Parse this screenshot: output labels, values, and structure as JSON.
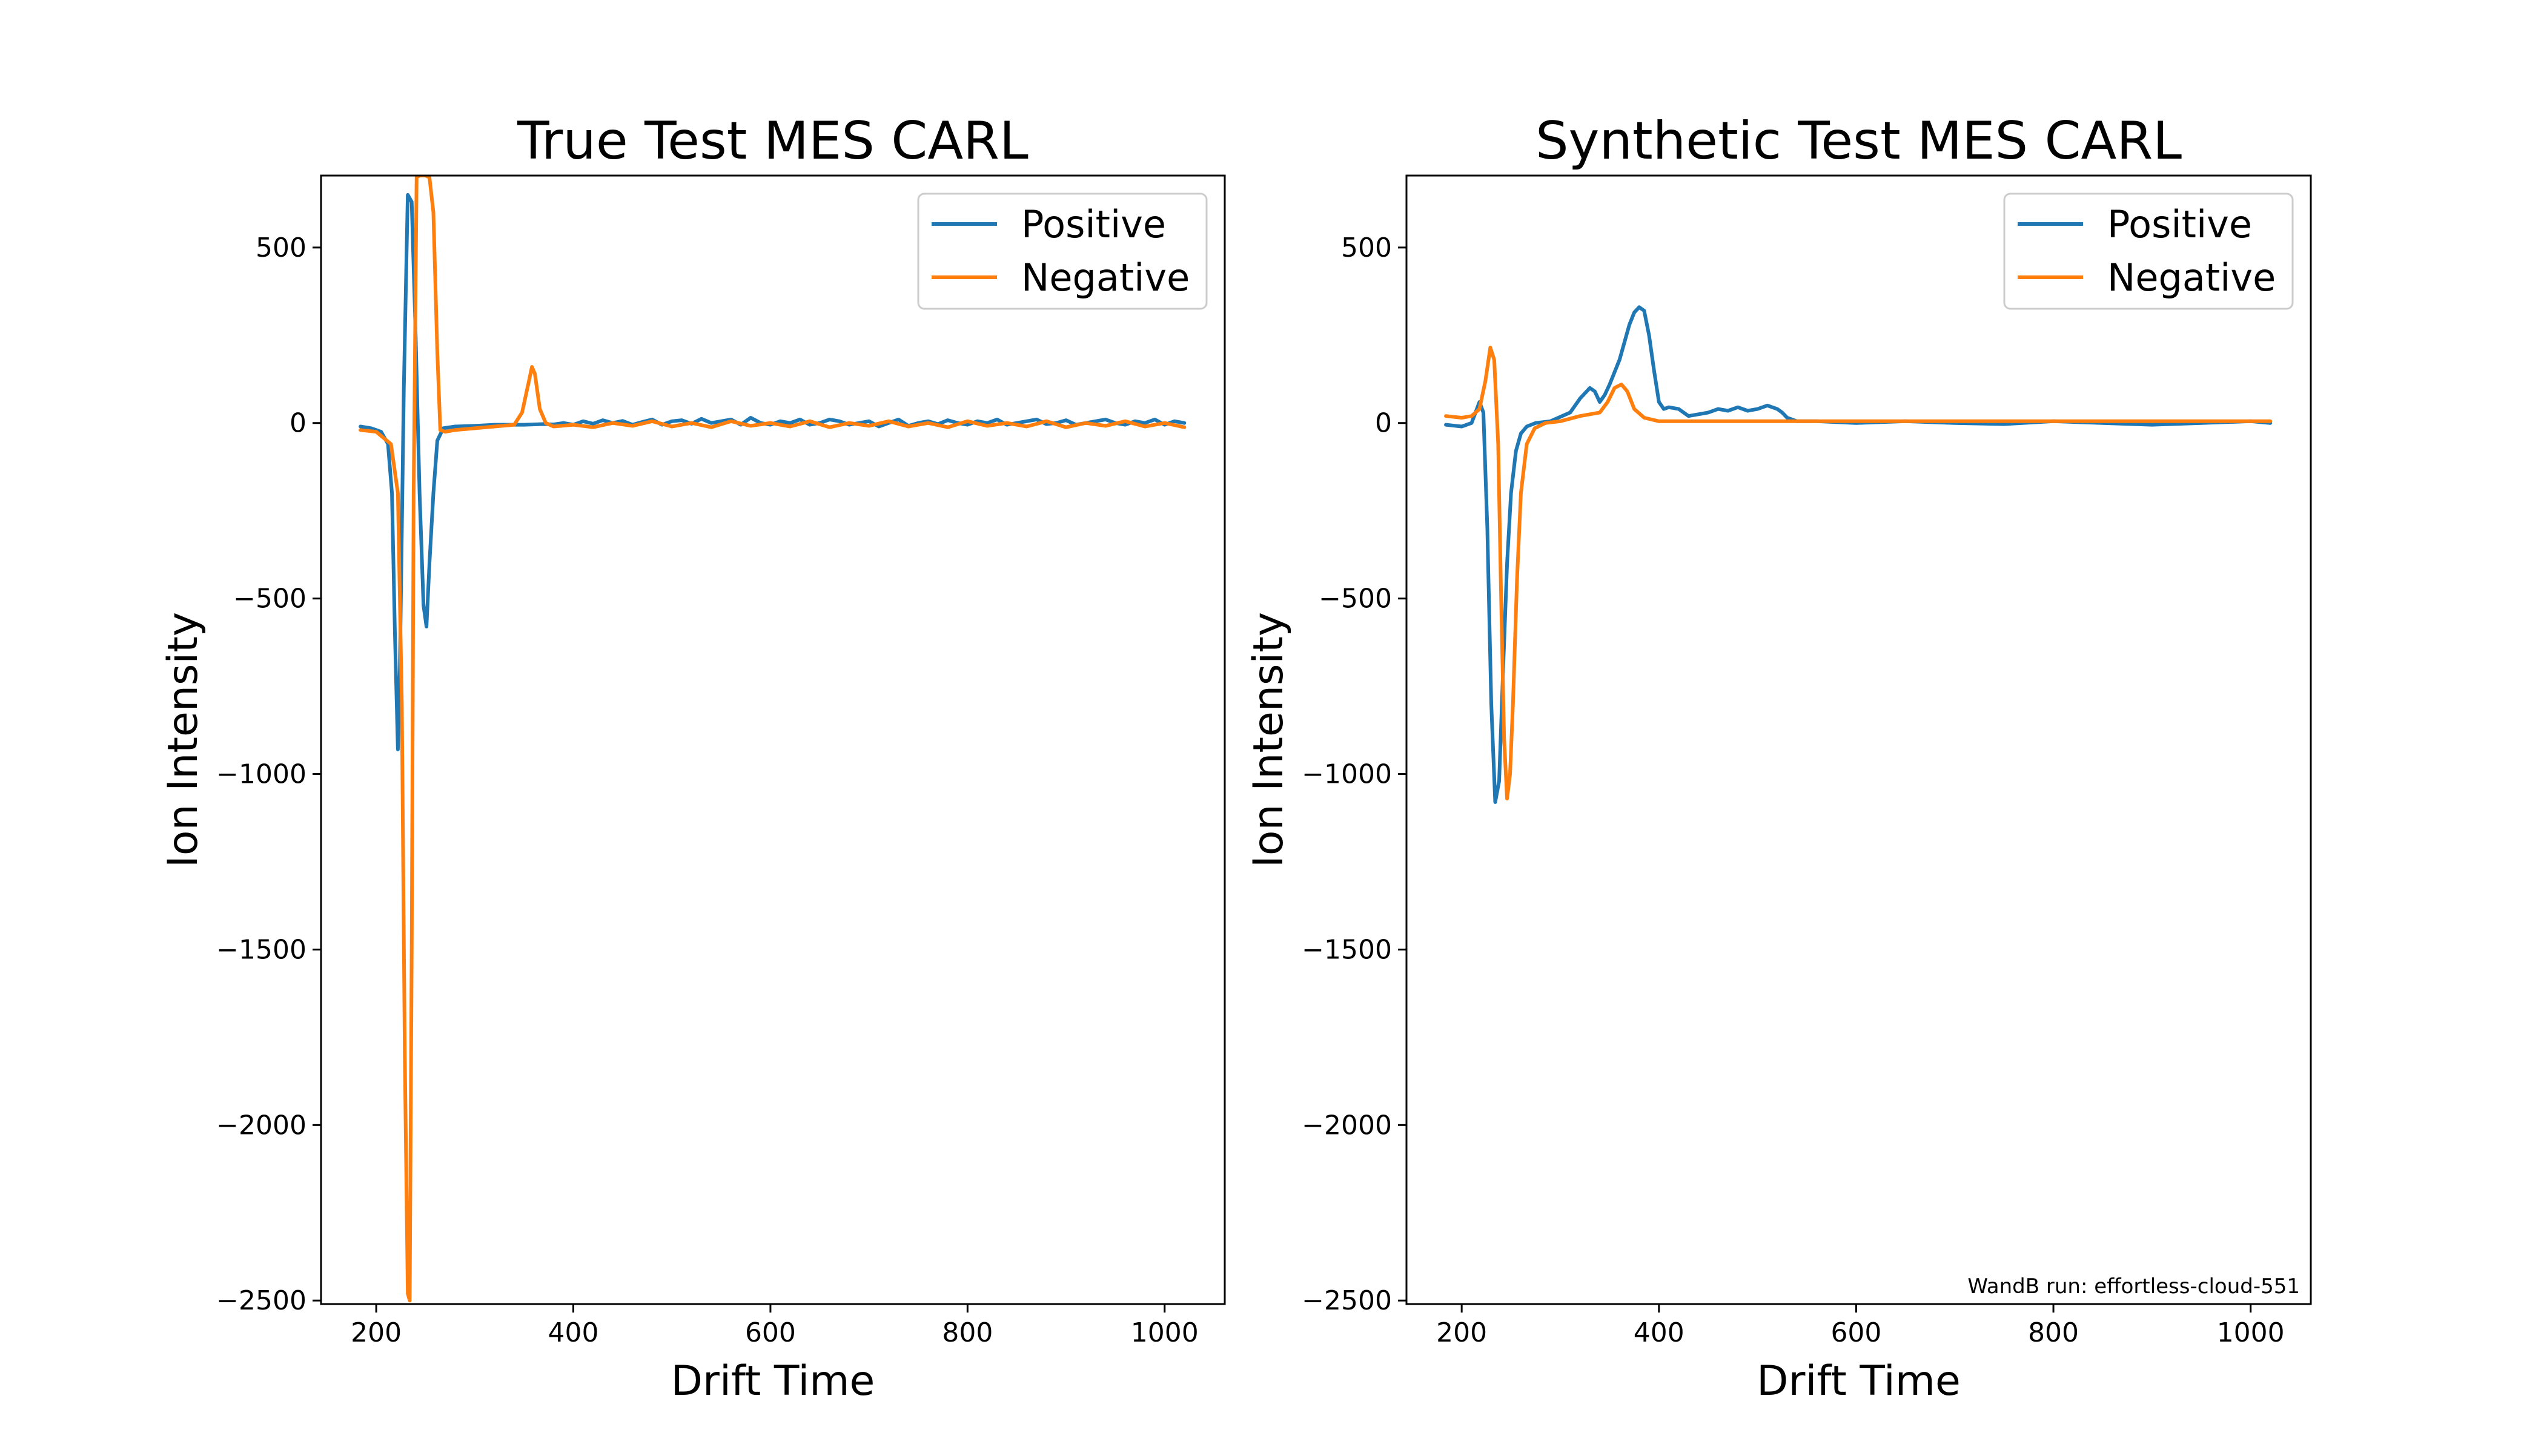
{
  "chart_data": [
    {
      "type": "line",
      "title": "True Test MES CARL",
      "xlabel": "Drift Time",
      "ylabel": "Ion Intensity",
      "xlim": [
        144,
        1061
      ],
      "ylim": [
        -2510,
        705
      ],
      "xticks": [
        200,
        400,
        600,
        800,
        1000
      ],
      "yticks": [
        500,
        0,
        -500,
        -1000,
        -1500,
        -2000,
        -2500
      ],
      "xtick_labels": [
        "200",
        "400",
        "600",
        "800",
        "1000"
      ],
      "ytick_labels": [
        "500",
        "0",
        "−500",
        "−1000",
        "−1500",
        "−2000",
        "−2500"
      ],
      "legend_position": "upper right",
      "grid": false,
      "annotation": "",
      "series": [
        {
          "name": "Positive",
          "color": "#1f77b4",
          "x": [
            184,
            195,
            205,
            212,
            216,
            219,
            222,
            224,
            228,
            232,
            236,
            240,
            244,
            248,
            251,
            254,
            258,
            262,
            268,
            280,
            300,
            320,
            350,
            370,
            380,
            390,
            400,
            410,
            420,
            430,
            440,
            450,
            460,
            470,
            480,
            490,
            500,
            510,
            520,
            530,
            540,
            550,
            560,
            570,
            580,
            590,
            600,
            610,
            620,
            630,
            640,
            650,
            660,
            670,
            680,
            690,
            700,
            710,
            720,
            730,
            740,
            750,
            760,
            770,
            780,
            790,
            800,
            810,
            820,
            830,
            840,
            850,
            860,
            870,
            880,
            890,
            900,
            910,
            920,
            930,
            940,
            950,
            960,
            970,
            980,
            990,
            1000,
            1010,
            1020
          ],
          "y": [
            -10,
            -15,
            -25,
            -60,
            -200,
            -600,
            -930,
            -700,
            100,
            650,
            630,
            250,
            -200,
            -520,
            -580,
            -400,
            -200,
            -50,
            -15,
            -10,
            -8,
            -5,
            -5,
            -3,
            -4,
            0,
            -5,
            5,
            -2,
            8,
            0,
            6,
            -5,
            3,
            10,
            -5,
            5,
            8,
            -2,
            12,
            0,
            5,
            10,
            -5,
            15,
            0,
            -5,
            5,
            0,
            10,
            -5,
            0,
            10,
            5,
            -5,
            0,
            5,
            -10,
            0,
            10,
            -8,
            0,
            5,
            -3,
            8,
            0,
            -5,
            5,
            0,
            10,
            -5,
            0,
            5,
            10,
            -3,
            0,
            8,
            -5,
            0,
            5,
            10,
            0,
            -5,
            5,
            0,
            10,
            -5,
            5,
            0
          ]
        },
        {
          "name": "Negative",
          "color": "#ff7f0e",
          "x": [
            184,
            200,
            215,
            222,
            226,
            229,
            232,
            234,
            236,
            238,
            241,
            244,
            247,
            250,
            254,
            258,
            262,
            265,
            270,
            280,
            300,
            320,
            340,
            348,
            355,
            358,
            361,
            366,
            372,
            380,
            400,
            420,
            440,
            460,
            480,
            500,
            520,
            540,
            560,
            580,
            600,
            620,
            640,
            660,
            680,
            700,
            720,
            740,
            760,
            780,
            800,
            820,
            840,
            860,
            880,
            900,
            920,
            940,
            960,
            980,
            1000,
            1020
          ],
          "y": [
            -20,
            -25,
            -60,
            -200,
            -800,
            -1800,
            -2480,
            -2500,
            -1500,
            -200,
            700,
            705,
            705,
            705,
            700,
            600,
            200,
            -20,
            -25,
            -20,
            -15,
            -10,
            -5,
            30,
            120,
            160,
            140,
            40,
            0,
            -10,
            -5,
            -12,
            0,
            -8,
            5,
            -10,
            0,
            -12,
            5,
            -8,
            0,
            -10,
            5,
            -12,
            0,
            -8,
            5,
            -10,
            0,
            -12,
            5,
            -8,
            0,
            -10,
            5,
            -12,
            0,
            -8,
            5,
            -10,
            0,
            -12
          ]
        }
      ]
    },
    {
      "type": "line",
      "title": "Synthetic Test MES CARL",
      "xlabel": "Drift Time",
      "ylabel": "Ion Intensity",
      "xlim": [
        144,
        1061
      ],
      "ylim": [
        -2510,
        705
      ],
      "xticks": [
        200,
        400,
        600,
        800,
        1000
      ],
      "yticks": [
        500,
        0,
        -500,
        -1000,
        -1500,
        -2000,
        -2500
      ],
      "xtick_labels": [
        "200",
        "400",
        "600",
        "800",
        "1000"
      ],
      "ytick_labels": [
        "500",
        "0",
        "−500",
        "−1000",
        "−1500",
        "−2000",
        "−2500"
      ],
      "legend_position": "upper right",
      "grid": false,
      "annotation": "WandB run: effortless-cloud-551",
      "series": [
        {
          "name": "Positive",
          "color": "#1f77b4",
          "x": [
            184,
            200,
            210,
            218,
            222,
            226,
            230,
            234,
            238,
            242,
            246,
            250,
            255,
            260,
            266,
            275,
            290,
            310,
            320,
            330,
            335,
            340,
            345,
            350,
            360,
            370,
            375,
            380,
            385,
            390,
            395,
            400,
            405,
            410,
            420,
            430,
            440,
            450,
            460,
            470,
            480,
            490,
            500,
            510,
            520,
            525,
            530,
            540,
            560,
            600,
            650,
            700,
            750,
            800,
            850,
            900,
            950,
            1000,
            1020
          ],
          "y": [
            -5,
            -10,
            0,
            60,
            30,
            -300,
            -800,
            -1080,
            -1020,
            -700,
            -400,
            -200,
            -80,
            -30,
            -10,
            0,
            5,
            30,
            70,
            100,
            90,
            60,
            80,
            110,
            180,
            280,
            315,
            330,
            320,
            250,
            150,
            60,
            40,
            45,
            40,
            20,
            25,
            30,
            40,
            35,
            45,
            35,
            40,
            50,
            40,
            30,
            15,
            5,
            5,
            0,
            5,
            0,
            -3,
            5,
            0,
            -5,
            0,
            5,
            0
          ]
        },
        {
          "name": "Negative",
          "color": "#ff7f0e",
          "x": [
            184,
            200,
            210,
            218,
            224,
            229,
            233,
            237,
            240,
            243,
            246,
            249,
            252,
            256,
            260,
            266,
            274,
            285,
            300,
            320,
            340,
            348,
            355,
            362,
            368,
            375,
            385,
            400,
            450,
            500,
            600,
            700,
            800,
            900,
            1000,
            1020
          ],
          "y": [
            20,
            15,
            20,
            40,
            120,
            215,
            180,
            -60,
            -500,
            -900,
            -1070,
            -1000,
            -800,
            -450,
            -200,
            -60,
            -15,
            0,
            5,
            20,
            30,
            60,
            100,
            110,
            90,
            40,
            15,
            5,
            5,
            5,
            5,
            5,
            5,
            5,
            5,
            5
          ]
        }
      ]
    }
  ]
}
